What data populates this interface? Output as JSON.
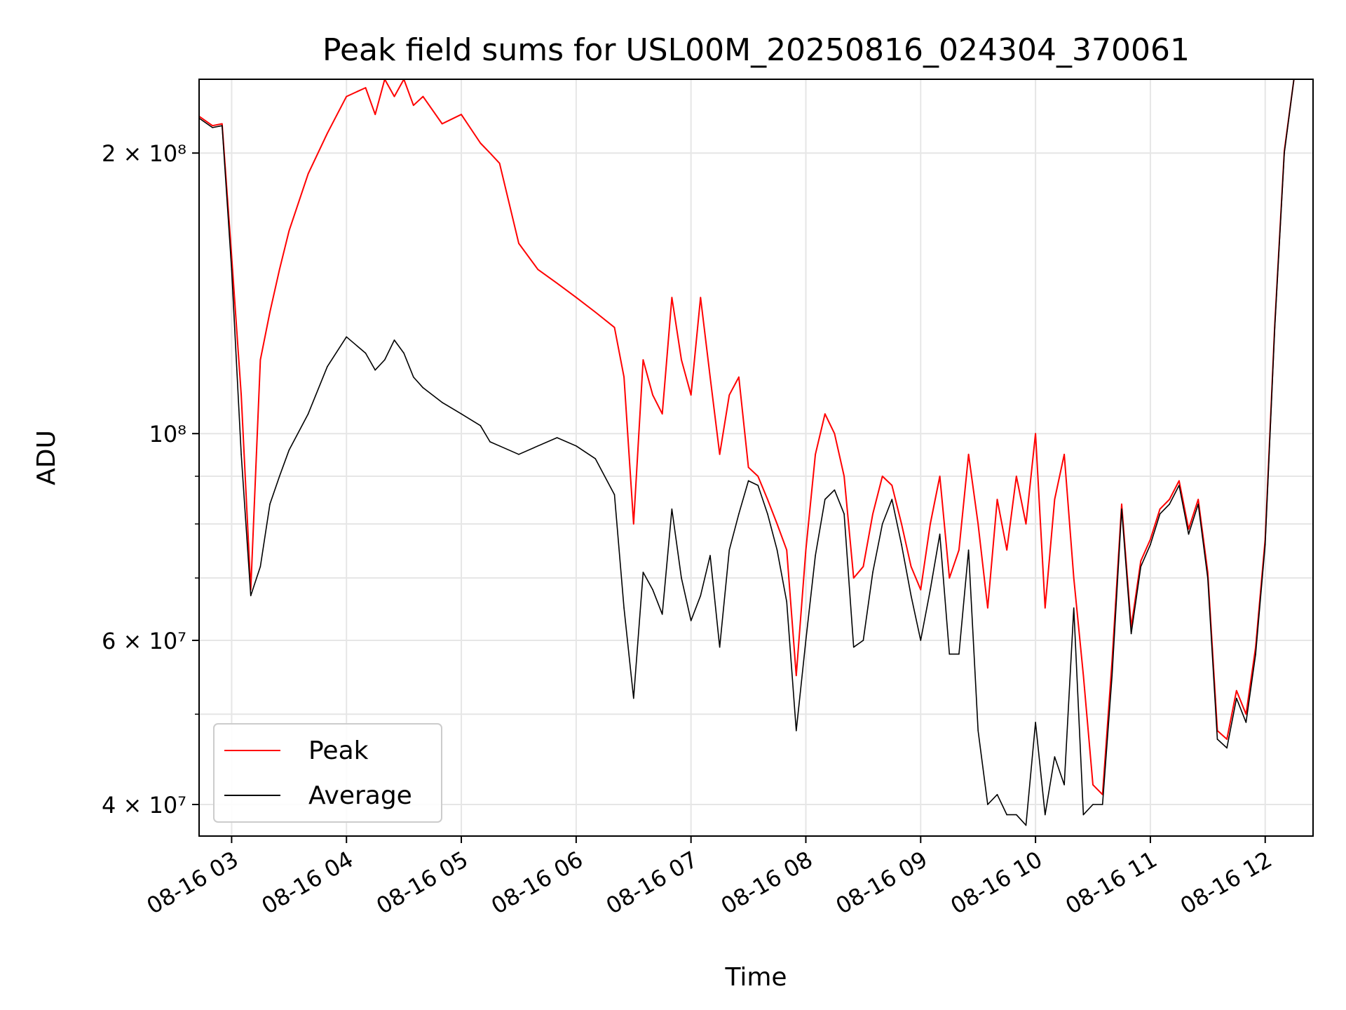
{
  "chart_data": {
    "type": "line",
    "title": "Peak field sums for USL00M_20250816_024304_370061",
    "xlabel": "Time",
    "ylabel": "ADU",
    "yscale": "log",
    "xlim": [
      "2025-08-16 02:43",
      "2025-08-16 12:25"
    ],
    "ylim": [
      37000000,
      240000000
    ],
    "grid": true,
    "legend_position": "lower-left",
    "x_ticks": [
      "08-16 03",
      "08-16 04",
      "08-16 05",
      "08-16 06",
      "08-16 07",
      "08-16 08",
      "08-16 09",
      "08-16 10",
      "08-16 11",
      "08-16 12"
    ],
    "y_ticks": [
      {
        "value": 40000000,
        "label": "4 × 10⁷"
      },
      {
        "value": 60000000,
        "label": "6 × 10⁷"
      },
      {
        "value": 100000000,
        "label": "10⁸"
      },
      {
        "value": 200000000,
        "label": "2 × 10⁸"
      }
    ],
    "x": [
      "2025-08-16 02:43",
      "2025-08-16 02:50",
      "2025-08-16 02:55",
      "2025-08-16 03:00",
      "2025-08-16 03:05",
      "2025-08-16 03:10",
      "2025-08-16 03:15",
      "2025-08-16 03:20",
      "2025-08-16 03:25",
      "2025-08-16 03:30",
      "2025-08-16 03:40",
      "2025-08-16 03:50",
      "2025-08-16 04:00",
      "2025-08-16 04:10",
      "2025-08-16 04:15",
      "2025-08-16 04:20",
      "2025-08-16 04:25",
      "2025-08-16 04:30",
      "2025-08-16 04:35",
      "2025-08-16 04:40",
      "2025-08-16 04:50",
      "2025-08-16 05:00",
      "2025-08-16 05:10",
      "2025-08-16 05:15",
      "2025-08-16 05:20",
      "2025-08-16 05:30",
      "2025-08-16 05:40",
      "2025-08-16 05:50",
      "2025-08-16 06:00",
      "2025-08-16 06:10",
      "2025-08-16 06:20",
      "2025-08-16 06:25",
      "2025-08-16 06:30",
      "2025-08-16 06:35",
      "2025-08-16 06:40",
      "2025-08-16 06:45",
      "2025-08-16 06:50",
      "2025-08-16 06:55",
      "2025-08-16 07:00",
      "2025-08-16 07:05",
      "2025-08-16 07:10",
      "2025-08-16 07:15",
      "2025-08-16 07:20",
      "2025-08-16 07:25",
      "2025-08-16 07:30",
      "2025-08-16 07:35",
      "2025-08-16 07:40",
      "2025-08-16 07:45",
      "2025-08-16 07:50",
      "2025-08-16 07:55",
      "2025-08-16 08:00",
      "2025-08-16 08:05",
      "2025-08-16 08:10",
      "2025-08-16 08:15",
      "2025-08-16 08:20",
      "2025-08-16 08:25",
      "2025-08-16 08:30",
      "2025-08-16 08:35",
      "2025-08-16 08:40",
      "2025-08-16 08:45",
      "2025-08-16 08:50",
      "2025-08-16 08:55",
      "2025-08-16 09:00",
      "2025-08-16 09:05",
      "2025-08-16 09:10",
      "2025-08-16 09:15",
      "2025-08-16 09:20",
      "2025-08-16 09:25",
      "2025-08-16 09:30",
      "2025-08-16 09:35",
      "2025-08-16 09:40",
      "2025-08-16 09:45",
      "2025-08-16 09:50",
      "2025-08-16 09:55",
      "2025-08-16 10:00",
      "2025-08-16 10:05",
      "2025-08-16 10:10",
      "2025-08-16 10:15",
      "2025-08-16 10:20",
      "2025-08-16 10:25",
      "2025-08-16 10:30",
      "2025-08-16 10:35",
      "2025-08-16 10:40",
      "2025-08-16 10:45",
      "2025-08-16 10:50",
      "2025-08-16 10:55",
      "2025-08-16 11:00",
      "2025-08-16 11:05",
      "2025-08-16 11:10",
      "2025-08-16 11:15",
      "2025-08-16 11:20",
      "2025-08-16 11:25",
      "2025-08-16 11:30",
      "2025-08-16 11:35",
      "2025-08-16 11:40",
      "2025-08-16 11:45",
      "2025-08-16 11:50",
      "2025-08-16 11:55",
      "2025-08-16 12:00",
      "2025-08-16 12:05",
      "2025-08-16 12:10",
      "2025-08-16 12:15"
    ],
    "series": [
      {
        "name": "Average",
        "color": "#000000",
        "values": [
          218000000,
          213000000,
          214000000,
          150000000,
          95000000,
          67000000,
          72000000,
          84000000,
          90000000,
          96000000,
          105000000,
          118000000,
          127000000,
          122000000,
          117000000,
          120000000,
          126000000,
          122000000,
          115000000,
          112000000,
          108000000,
          105000000,
          102000000,
          98000000,
          97000000,
          95000000,
          97000000,
          99000000,
          97000000,
          94000000,
          86000000,
          65000000,
          52000000,
          71000000,
          68000000,
          64000000,
          83000000,
          70000000,
          63000000,
          67000000,
          74000000,
          59000000,
          75000000,
          82000000,
          89000000,
          88000000,
          82000000,
          75000000,
          66000000,
          48000000,
          60000000,
          74000000,
          85000000,
          87000000,
          82000000,
          59000000,
          60000000,
          71000000,
          80000000,
          85000000,
          76000000,
          67000000,
          60000000,
          68000000,
          78000000,
          58000000,
          58000000,
          75000000,
          48000000,
          40000000,
          41000000,
          39000000,
          39000000,
          38000000,
          49000000,
          39000000,
          45000000,
          42000000,
          65000000,
          39000000,
          40000000,
          40000000,
          55000000,
          83000000,
          61000000,
          72000000,
          76000000,
          82000000,
          84000000,
          88000000,
          78000000,
          84000000,
          70000000,
          47000000,
          46000000,
          52000000,
          49000000,
          58000000,
          76000000,
          130000000,
          200000000,
          240000000
        ]
      },
      {
        "name": "Peak",
        "color": "#ff0000",
        "values": [
          219000000,
          214000000,
          215000000,
          155000000,
          110000000,
          68000000,
          120000000,
          135000000,
          150000000,
          165000000,
          190000000,
          210000000,
          230000000,
          235000000,
          220000000,
          240000000,
          230000000,
          240000000,
          225000000,
          230000000,
          215000000,
          220000000,
          205000000,
          200000000,
          195000000,
          160000000,
          150000000,
          145000000,
          140000000,
          135000000,
          130000000,
          115000000,
          80000000,
          120000000,
          110000000,
          105000000,
          140000000,
          120000000,
          110000000,
          140000000,
          115000000,
          95000000,
          110000000,
          115000000,
          92000000,
          90000000,
          85000000,
          80000000,
          75000000,
          55000000,
          75000000,
          95000000,
          105000000,
          100000000,
          90000000,
          70000000,
          72000000,
          82000000,
          90000000,
          88000000,
          80000000,
          72000000,
          68000000,
          80000000,
          90000000,
          70000000,
          75000000,
          95000000,
          80000000,
          65000000,
          85000000,
          75000000,
          90000000,
          80000000,
          100000000,
          65000000,
          85000000,
          95000000,
          70000000,
          55000000,
          42000000,
          41000000,
          57000000,
          84000000,
          62000000,
          73000000,
          77000000,
          83000000,
          85000000,
          89000000,
          79000000,
          85000000,
          71000000,
          48000000,
          47000000,
          53000000,
          50000000,
          59000000,
          77000000,
          131000000,
          201000000,
          240000000
        ]
      }
    ]
  }
}
